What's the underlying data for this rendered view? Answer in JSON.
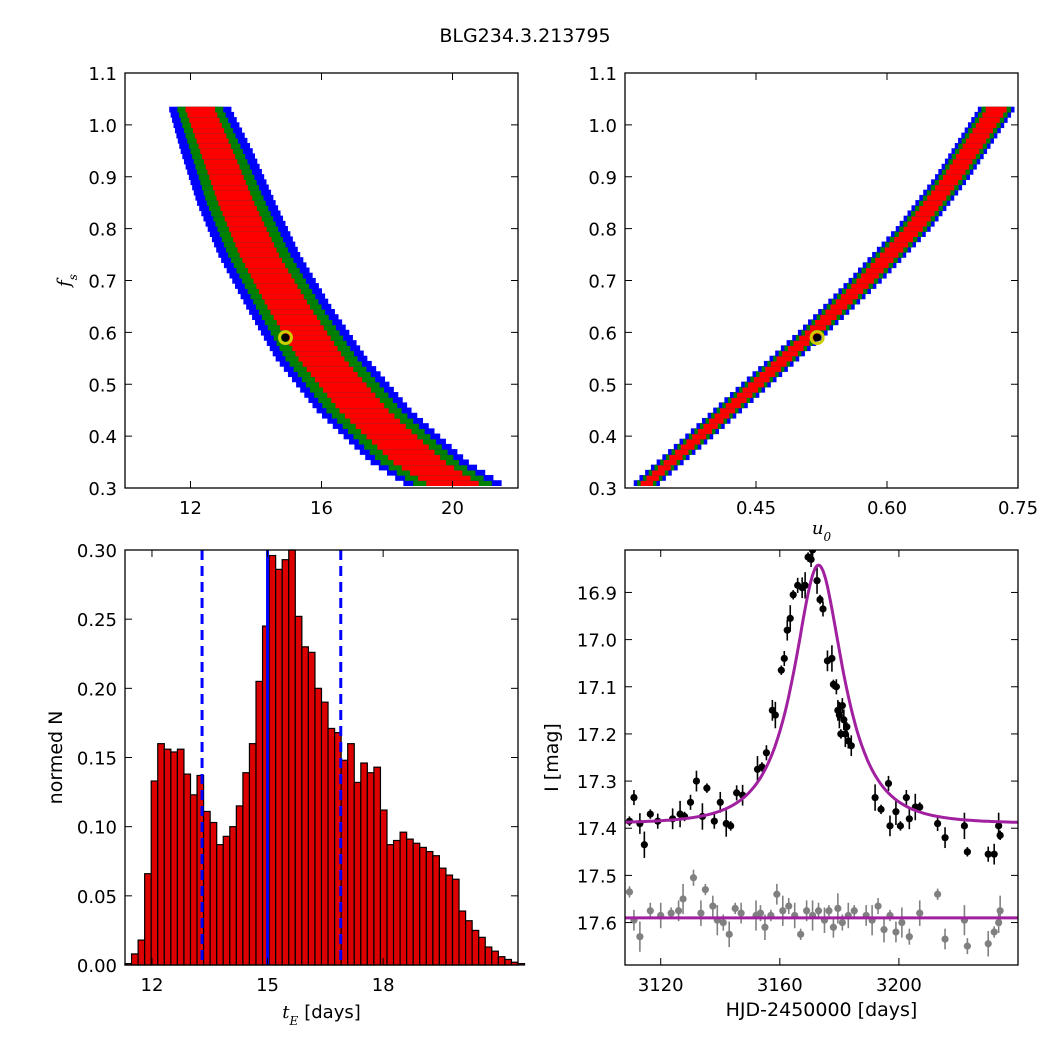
{
  "figure_title": "BLG234.3.213795",
  "colors": {
    "sigma1": "#ff0000",
    "sigma2": "#008000",
    "sigma3": "#0000ff",
    "marker": "#cccc00",
    "model": "#a020a0",
    "data": "#000000",
    "residual": "#808080",
    "bar": "#dd0000"
  },
  "chart_data": [
    {
      "type": "heatmap",
      "xlabel": "",
      "ylabel": "f_s",
      "xlim": [
        10,
        22
      ],
      "ylim": [
        0.3,
        1.1
      ],
      "xticks": [
        "12",
        "16",
        "20"
      ],
      "yticks": [
        "0.3",
        "0.4",
        "0.5",
        "0.6",
        "0.7",
        "0.8",
        "0.9",
        "1.0",
        "1.1"
      ],
      "confidence_band": {
        "fs": [
          1.03,
          0.95,
          0.85,
          0.75,
          0.65,
          0.55,
          0.45,
          0.35,
          0.31
        ],
        "tE_center": [
          12.3,
          12.8,
          13.4,
          14.1,
          15.0,
          16.0,
          17.3,
          19.0,
          20.0
        ],
        "width_1sigma": [
          0.45,
          0.5,
          0.55,
          0.6,
          0.65,
          0.7,
          0.75,
          0.8,
          0.8
        ],
        "width_2sigma": [
          0.25,
          0.3,
          0.35,
          0.35,
          0.35,
          0.4,
          0.4,
          0.4,
          0.4
        ],
        "width_3sigma": [
          0.25,
          0.3,
          0.3,
          0.3,
          0.3,
          0.3,
          0.3,
          0.3,
          0.3
        ]
      },
      "best_fit": {
        "x": 14.9,
        "y": 0.59
      }
    },
    {
      "type": "heatmap",
      "xlabel": "u_0",
      "ylabel": "",
      "xlim": [
        0.3,
        0.75
      ],
      "ylim": [
        0.3,
        1.1
      ],
      "xticks": [
        "0.45",
        "0.60",
        "0.75"
      ],
      "yticks": [
        "0.3",
        "0.4",
        "0.5",
        "0.6",
        "0.7",
        "0.8",
        "0.9",
        "1.0",
        "1.1"
      ],
      "confidence_band": {
        "fs": [
          0.31,
          0.4,
          0.5,
          0.6,
          0.7,
          0.8,
          0.9,
          1.03
        ],
        "u0_center": [
          0.325,
          0.385,
          0.45,
          0.515,
          0.575,
          0.63,
          0.675,
          0.725
        ],
        "width_1sigma": [
          0.007,
          0.008,
          0.009,
          0.009,
          0.01,
          0.011,
          0.011,
          0.012
        ],
        "width_2sigma": [
          0.004,
          0.004,
          0.004,
          0.004,
          0.005,
          0.005,
          0.005,
          0.005
        ],
        "width_3sigma": [
          0.004,
          0.004,
          0.004,
          0.004,
          0.004,
          0.004,
          0.004,
          0.004
        ]
      },
      "best_fit": {
        "x": 0.52,
        "y": 0.59
      }
    },
    {
      "type": "bar",
      "xlabel": "t_E [days]",
      "ylabel": "normed N",
      "xlim": [
        11.3,
        21.5
      ],
      "ylim": [
        0,
        0.3
      ],
      "xticks": [
        "12",
        "15",
        "18"
      ],
      "yticks": [
        "0.00",
        "0.05",
        "0.10",
        "0.15",
        "0.20",
        "0.25",
        "0.30"
      ],
      "bin_start": 11.3,
      "bin_width": 0.17,
      "values": [
        0.001,
        0.008,
        0.018,
        0.066,
        0.133,
        0.16,
        0.156,
        0.154,
        0.156,
        0.138,
        0.123,
        0.137,
        0.111,
        0.103,
        0.087,
        0.093,
        0.1,
        0.115,
        0.139,
        0.16,
        0.205,
        0.245,
        0.296,
        0.286,
        0.293,
        0.3,
        0.252,
        0.23,
        0.226,
        0.2,
        0.19,
        0.171,
        0.168,
        0.148,
        0.16,
        0.132,
        0.146,
        0.139,
        0.143,
        0.112,
        0.087,
        0.09,
        0.096,
        0.091,
        0.088,
        0.085,
        0.082,
        0.079,
        0.07,
        0.065,
        0.062,
        0.039,
        0.032,
        0.025,
        0.02,
        0.013,
        0.01,
        0.006,
        0.004,
        0.002,
        0.001
      ],
      "vlines": {
        "median": 15.0,
        "lower": 13.3,
        "upper": 16.9
      }
    },
    {
      "type": "scatter",
      "xlabel": "HJD-2450000 [days]",
      "ylabel": "I [mag]",
      "xlim": [
        3108,
        3240
      ],
      "ylim": [
        17.69,
        16.81
      ],
      "xticks": [
        "3120",
        "3160",
        "3200"
      ],
      "yticks": [
        "16.9",
        "17.0",
        "17.1",
        "17.2",
        "17.3",
        "17.4",
        "17.5",
        "17.6"
      ],
      "model": {
        "t0": 3173,
        "u0": 0.52,
        "tE": 15.0,
        "fs": 0.59,
        "base": 17.39
      },
      "residual_offset": 17.59,
      "observations": [
        [
          3109.5,
          17.385
        ],
        [
          3111.0,
          17.335
        ],
        [
          3113.0,
          17.39
        ],
        [
          3114.5,
          17.435
        ],
        [
          3116.5,
          17.37
        ],
        [
          3119.0,
          17.385
        ],
        [
          3124.0,
          17.38
        ],
        [
          3126.5,
          17.37
        ],
        [
          3128.0,
          17.375
        ],
        [
          3130.0,
          17.345
        ],
        [
          3132.0,
          17.3
        ],
        [
          3134.0,
          17.375
        ],
        [
          3135.5,
          17.315
        ],
        [
          3138.0,
          17.385
        ],
        [
          3140.0,
          17.345
        ],
        [
          3142.0,
          17.39
        ],
        [
          3143.5,
          17.395
        ],
        [
          3145.5,
          17.325
        ],
        [
          3147.5,
          17.33
        ],
        [
          3152.5,
          17.275
        ],
        [
          3154.0,
          17.27
        ],
        [
          3155.5,
          17.24
        ],
        [
          3157.5,
          17.15
        ],
        [
          3158.5,
          17.16
        ],
        [
          3160.5,
          17.065
        ],
        [
          3161.5,
          17.04
        ],
        [
          3162.5,
          16.98
        ],
        [
          3163.5,
          16.955
        ],
        [
          3164.5,
          16.905
        ],
        [
          3166.0,
          16.885
        ],
        [
          3167.5,
          16.89
        ],
        [
          3168.5,
          16.885
        ],
        [
          3169.5,
          16.825
        ],
        [
          3170.5,
          16.83
        ],
        [
          3171.0,
          16.81
        ],
        [
          3172.5,
          16.875
        ],
        [
          3173.5,
          16.915
        ],
        [
          3174.5,
          16.935
        ],
        [
          3176.0,
          17.045
        ],
        [
          3177.5,
          17.04
        ],
        [
          3178.0,
          17.095
        ],
        [
          3179.0,
          17.1
        ],
        [
          3179.5,
          17.15
        ],
        [
          3180.0,
          17.16
        ],
        [
          3180.5,
          17.2
        ],
        [
          3181.0,
          17.14
        ],
        [
          3181.5,
          17.17
        ],
        [
          3182.0,
          17.2
        ],
        [
          3182.5,
          17.185
        ],
        [
          3183.0,
          17.215
        ],
        [
          3184.0,
          17.225
        ],
        [
          3192.0,
          17.335
        ],
        [
          3194.0,
          17.36
        ],
        [
          3196.5,
          17.305
        ],
        [
          3197.0,
          17.395
        ],
        [
          3199.0,
          17.365
        ],
        [
          3200.5,
          17.395
        ],
        [
          3202.5,
          17.335
        ],
        [
          3203.5,
          17.38
        ],
        [
          3205.5,
          17.355
        ],
        [
          3207.0,
          17.355
        ],
        [
          3213.0,
          17.39
        ],
        [
          3215.5,
          17.42
        ],
        [
          3222.0,
          17.395
        ],
        [
          3223.0,
          17.45
        ],
        [
          3230.0,
          17.455
        ],
        [
          3232.0,
          17.455
        ],
        [
          3233.5,
          17.395
        ],
        [
          3234.0,
          17.415
        ]
      ],
      "residuals": [
        [
          3109.5,
          17.535
        ],
        [
          3111.0,
          17.595
        ],
        [
          3113.0,
          17.63
        ],
        [
          3116.5,
          17.575
        ],
        [
          3120.0,
          17.585
        ],
        [
          3123.5,
          17.58
        ],
        [
          3126.0,
          17.575
        ],
        [
          3127.5,
          17.55
        ],
        [
          3131.0,
          17.505
        ],
        [
          3133.5,
          17.58
        ],
        [
          3135.0,
          17.53
        ],
        [
          3137.5,
          17.565
        ],
        [
          3139.0,
          17.595
        ],
        [
          3141.0,
          17.6
        ],
        [
          3143.0,
          17.625
        ],
        [
          3145.0,
          17.57
        ],
        [
          3147.0,
          17.58
        ],
        [
          3152.0,
          17.585
        ],
        [
          3153.5,
          17.58
        ],
        [
          3155.0,
          17.61
        ],
        [
          3157.0,
          17.585
        ],
        [
          3159.0,
          17.54
        ],
        [
          3161.0,
          17.575
        ],
        [
          3163.0,
          17.565
        ],
        [
          3165.0,
          17.585
        ],
        [
          3167.0,
          17.625
        ],
        [
          3169.0,
          17.575
        ],
        [
          3171.0,
          17.585
        ],
        [
          3173.0,
          17.575
        ],
        [
          3175.0,
          17.595
        ],
        [
          3176.5,
          17.575
        ],
        [
          3178.0,
          17.61
        ],
        [
          3179.5,
          17.57
        ],
        [
          3181.0,
          17.6
        ],
        [
          3183.0,
          17.585
        ],
        [
          3185.0,
          17.575
        ],
        [
          3189.0,
          17.585
        ],
        [
          3191.0,
          17.595
        ],
        [
          3193.0,
          17.565
        ],
        [
          3195.0,
          17.615
        ],
        [
          3197.0,
          17.585
        ],
        [
          3199.0,
          17.62
        ],
        [
          3201.0,
          17.6
        ],
        [
          3203.5,
          17.63
        ],
        [
          3207.0,
          17.58
        ],
        [
          3213.0,
          17.54
        ],
        [
          3215.5,
          17.635
        ],
        [
          3222.0,
          17.595
        ],
        [
          3223.0,
          17.65
        ],
        [
          3230.0,
          17.645
        ],
        [
          3232.0,
          17.62
        ],
        [
          3233.5,
          17.6
        ],
        [
          3234.0,
          17.575
        ]
      ]
    }
  ]
}
